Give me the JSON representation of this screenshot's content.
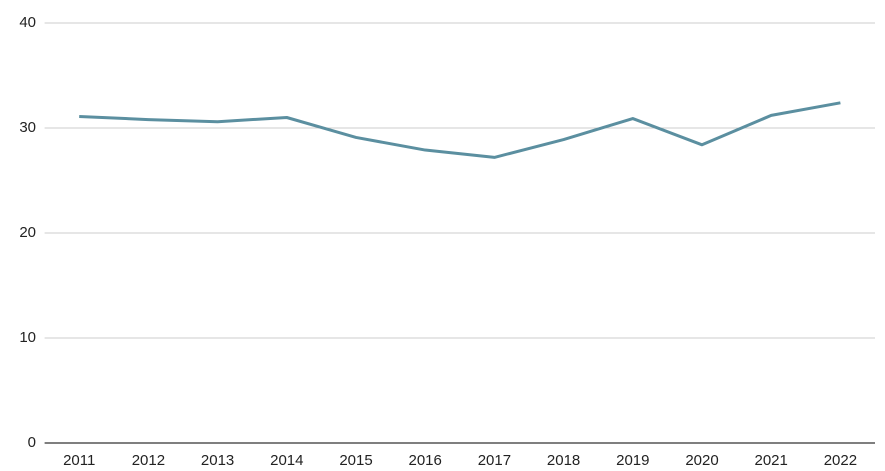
{
  "chart_data": {
    "type": "line",
    "categories": [
      "2011",
      "2012",
      "2013",
      "2014",
      "2015",
      "2016",
      "2017",
      "2018",
      "2019",
      "2020",
      "2021",
      "2022"
    ],
    "series": [
      {
        "color": "#5b8fa0",
        "values": [
          31.1,
          30.8,
          30.6,
          31.0,
          29.1,
          27.9,
          27.2,
          28.9,
          30.9,
          28.4,
          31.2,
          32.4
        ]
      }
    ],
    "ylim": [
      0,
      40
    ],
    "yticks": [
      0,
      10,
      20,
      30,
      40
    ],
    "grid": true
  }
}
